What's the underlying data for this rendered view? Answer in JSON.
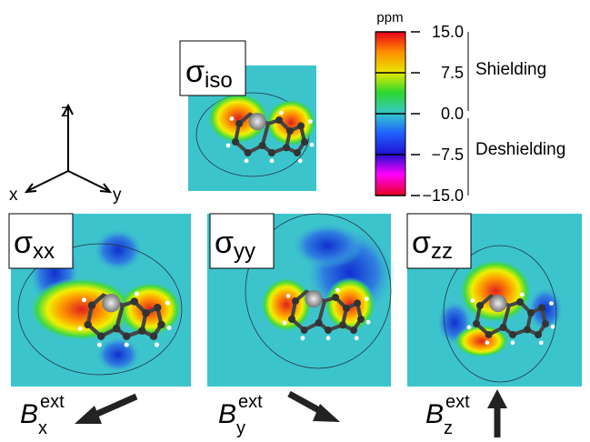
{
  "axes_icon": {
    "z": "z",
    "x": "x",
    "y": "y"
  },
  "colorbar": {
    "unit": "ppm",
    "ticks": [
      {
        "value": 15,
        "label": "15.0"
      },
      {
        "value": 7.5,
        "label": "7.5"
      },
      {
        "value": 0,
        "label": "0.0"
      },
      {
        "value": -7.5,
        "label": "−7.5"
      },
      {
        "value": -15,
        "label": "−15.0"
      }
    ],
    "upper_label": "Shielding",
    "lower_label": "Deshielding"
  },
  "panels": [
    {
      "symbol": "σ",
      "subscript": "iso"
    },
    {
      "symbol": "σ",
      "subscript": "xx"
    },
    {
      "symbol": "σ",
      "subscript": "yy"
    },
    {
      "symbol": "σ",
      "subscript": "zz"
    }
  ],
  "fields": [
    {
      "symbol": "B",
      "subscript": "x",
      "superscript": "ext"
    },
    {
      "symbol": "B",
      "subscript": "y",
      "superscript": "ext"
    },
    {
      "symbol": "B",
      "subscript": "z",
      "superscript": "ext"
    }
  ]
}
